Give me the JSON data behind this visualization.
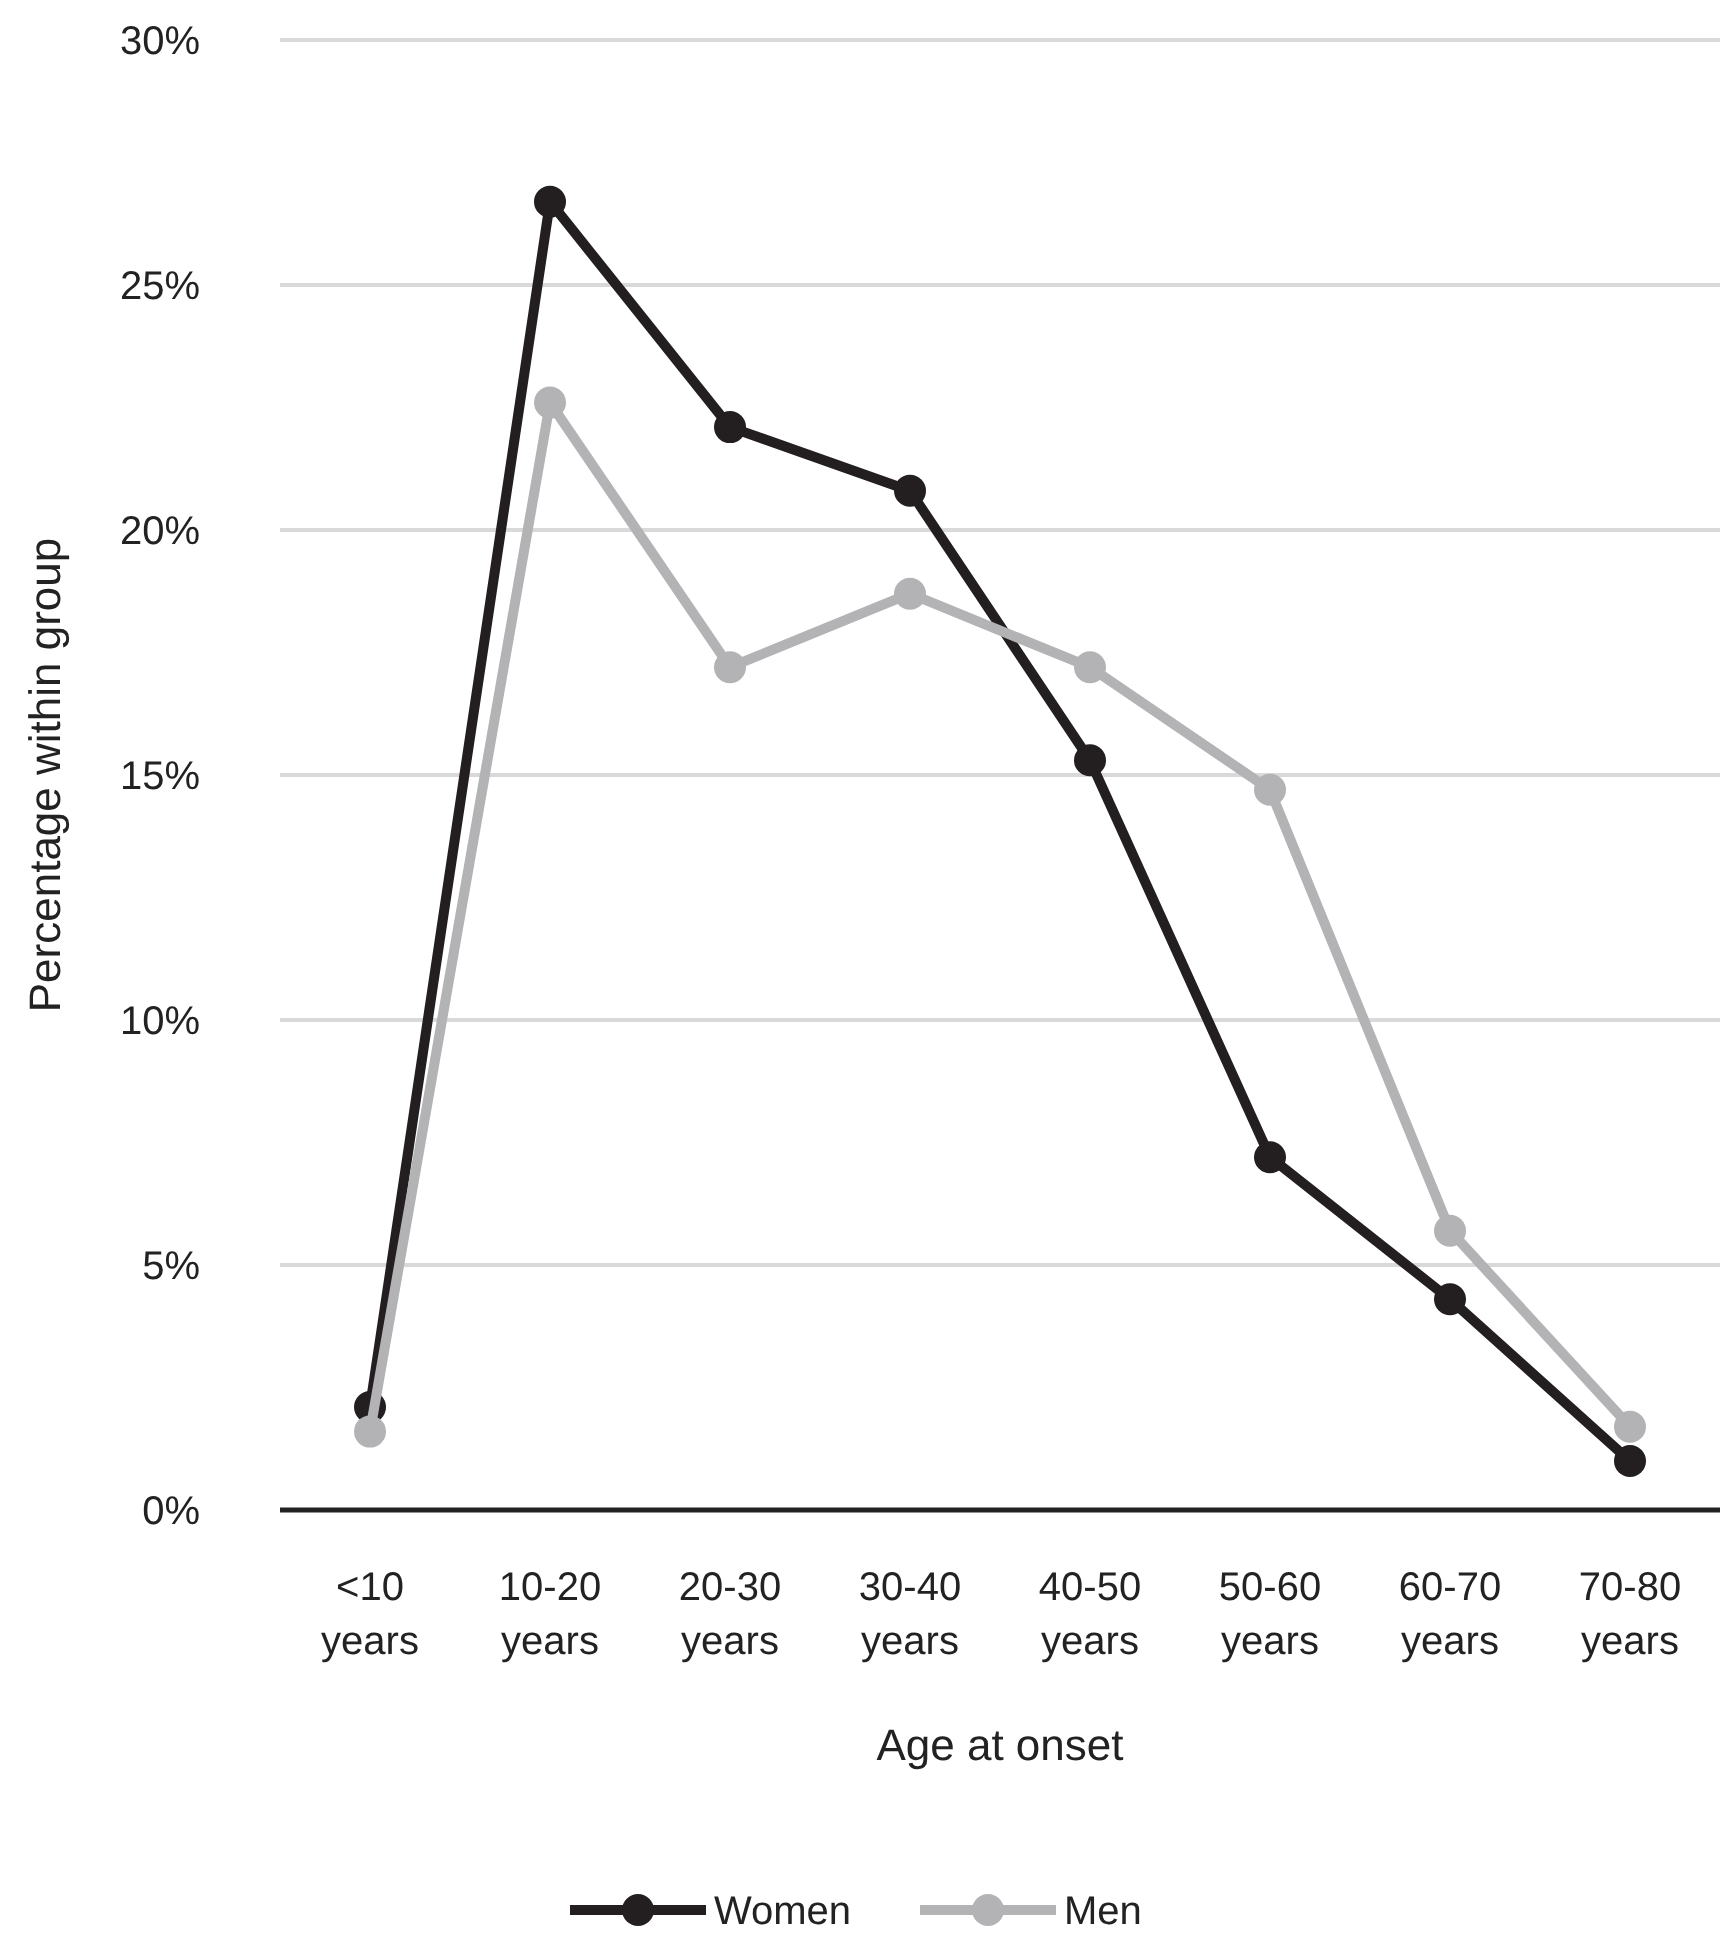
{
  "chart_data": {
    "type": "line",
    "xlabel": "Age at onset",
    "ylabel": "Percentage within group",
    "categories": [
      "<10 years",
      "10-20 years",
      "20-30 years",
      "30-40 years",
      "40-50 years",
      "50-60 years",
      "60-70 years",
      "70-80 years"
    ],
    "series": [
      {
        "name": "Women",
        "color": "#231f20",
        "values": [
          2.1,
          26.7,
          22.1,
          20.8,
          15.3,
          7.2,
          4.3,
          1.0
        ]
      },
      {
        "name": "Men",
        "color": "#b3b3b6",
        "values": [
          1.6,
          22.6,
          17.2,
          18.7,
          17.2,
          14.7,
          5.7,
          1.7
        ]
      }
    ],
    "ylim": [
      0,
      30
    ],
    "yticks": [
      {
        "value": 0,
        "label": "0%"
      },
      {
        "value": 5,
        "label": "5%"
      },
      {
        "value": 10,
        "label": "10%"
      },
      {
        "value": 15,
        "label": "15%"
      },
      {
        "value": 20,
        "label": "20%"
      },
      {
        "value": 25,
        "label": "25%"
      },
      {
        "value": 30,
        "label": "30%"
      }
    ],
    "grid": "y",
    "legend": "bottom",
    "marker": "circle",
    "line_style": "solid"
  }
}
